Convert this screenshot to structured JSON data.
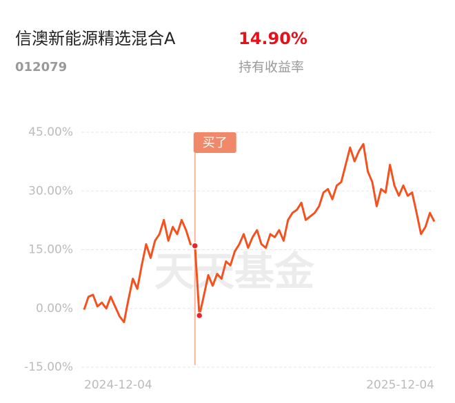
{
  "header": {
    "title": "信澳新能源精选混合A",
    "return": "14.90%",
    "code": "012079",
    "return_label": "持有收益率"
  },
  "chart_data": {
    "type": "line",
    "categories": [
      "2024-12-04",
      null,
      null,
      null,
      null,
      null,
      null,
      null,
      null,
      null,
      null,
      null,
      null,
      null,
      null,
      null,
      null,
      null,
      null,
      null,
      null,
      null,
      null,
      null,
      null,
      null,
      null,
      null,
      null,
      null,
      null,
      null,
      null,
      null,
      null,
      null,
      null,
      null,
      null,
      null,
      null,
      null,
      null,
      null,
      null,
      null,
      null,
      null,
      null,
      null,
      null,
      null,
      null,
      null,
      null,
      null,
      null,
      null,
      null,
      null,
      null,
      null,
      null,
      null,
      null,
      null,
      null,
      null,
      null,
      null,
      null,
      null,
      null,
      null,
      null,
      null,
      null,
      null,
      null,
      "2025-12-04"
    ],
    "series": [
      {
        "color": "#f4511e",
        "values": [
          -0.3,
          3,
          3.5,
          0.5,
          1.5,
          0,
          3,
          0.5,
          -2,
          -3.5,
          2.3,
          7.6,
          5,
          11,
          16.4,
          12.9,
          17.3,
          19,
          22.6,
          17.3,
          20.8,
          19,
          22.6,
          20,
          16.4,
          16,
          -1.8,
          3.2,
          8.5,
          5.8,
          8.8,
          7.6,
          12,
          11,
          14.6,
          16.4,
          19,
          15.5,
          18.2,
          20,
          16.4,
          15.5,
          19,
          18.2,
          20,
          17.3,
          22.6,
          24.4,
          25.2,
          27,
          22.6,
          23.5,
          24.4,
          26.1,
          29.6,
          30.5,
          27.9,
          31.4,
          32.3,
          36.7,
          41.1,
          37.6,
          40.2,
          42,
          35,
          32.3,
          26.1,
          30.5,
          29.6,
          36.7,
          31.4,
          28.8,
          31.4,
          28.8,
          29.6,
          24.4,
          19,
          20.8,
          24.4,
          22.2
        ]
      }
    ],
    "ylim": [
      -15,
      45
    ],
    "yticks": [
      {
        "value": -15,
        "label": "-15.00%"
      },
      {
        "value": 0,
        "label": "0.00%"
      },
      {
        "value": 15,
        "label": "15.00%"
      },
      {
        "value": 30,
        "label": "30.00%"
      },
      {
        "value": 45,
        "label": "45.00%"
      }
    ],
    "grid": true,
    "annotation": "买了",
    "watermark": "天天基金"
  }
}
